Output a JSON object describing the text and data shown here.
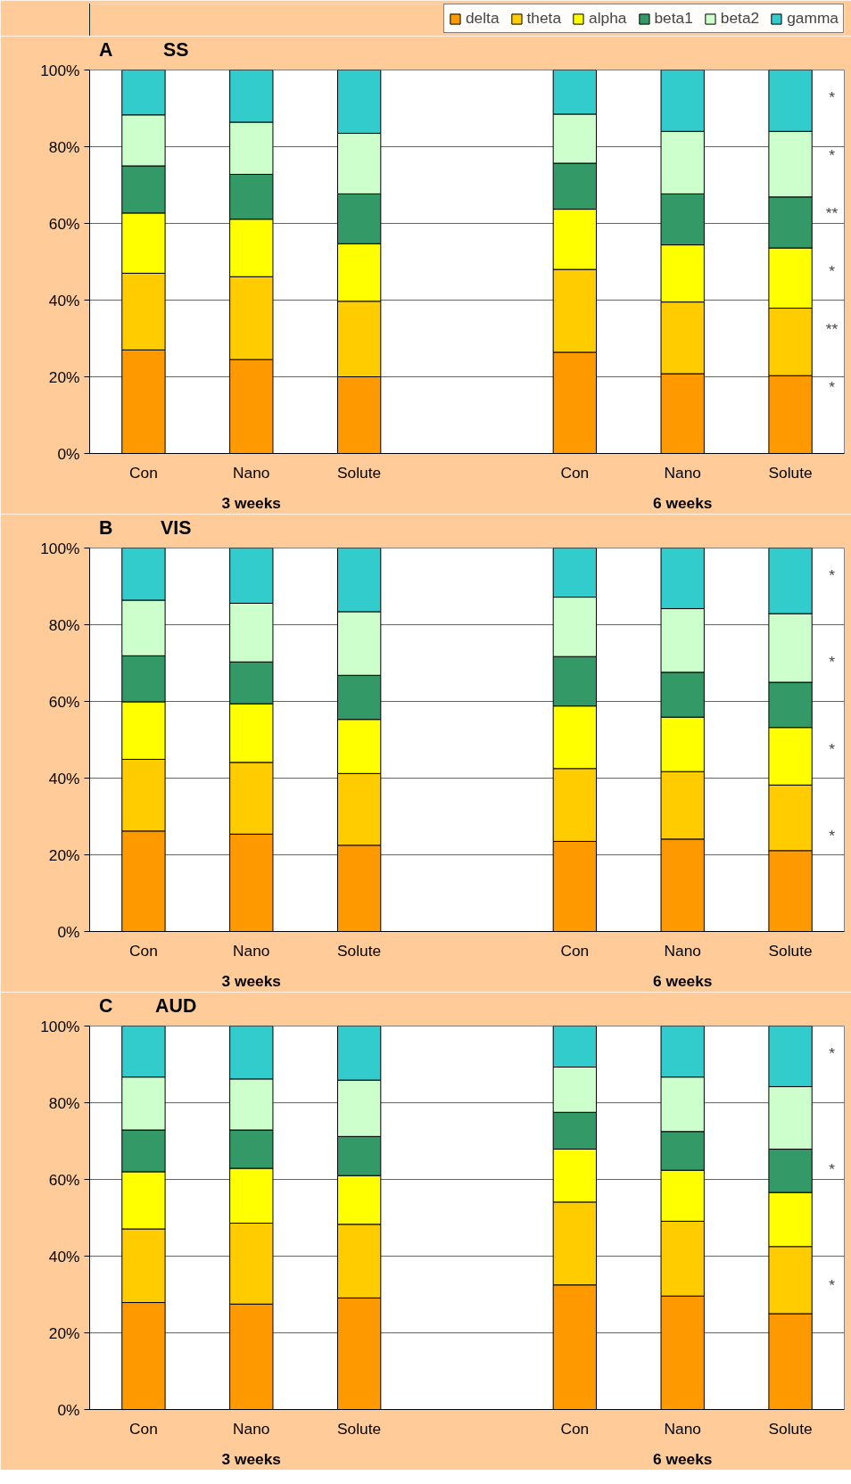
{
  "chart_data": [
    {
      "type": "bar",
      "stacked": true,
      "title": "A",
      "subtitle": "SS",
      "legend": "top right",
      "grid": "y",
      "categories": [
        "Con",
        "Nano",
        "Solute",
        null,
        "Con",
        "Nano",
        "Solute"
      ],
      "ylim": [
        0,
        100
      ],
      "yticks": [
        {
          "value": 0,
          "label": "0%"
        },
        {
          "value": 20,
          "label": "20%"
        },
        {
          "value": 40,
          "label": "40%"
        },
        {
          "value": 60,
          "label": "60%"
        },
        {
          "value": 80,
          "label": "80%"
        },
        {
          "value": 100,
          "label": "100%"
        }
      ],
      "series": [
        {
          "name": "delta",
          "color": "#ff9900",
          "values": [
            27,
            24.5,
            20,
            null,
            26.4,
            20.8,
            20.3
          ]
        },
        {
          "name": "theta",
          "color": "#ffcc00",
          "values": [
            20,
            21.6,
            19.7,
            null,
            21.6,
            18.7,
            17.6
          ]
        },
        {
          "name": "alpha",
          "color": "#ffff00",
          "values": [
            15.7,
            15,
            15,
            null,
            15.7,
            14.9,
            15.7
          ]
        },
        {
          "name": "beta1",
          "color": "#339966",
          "values": [
            12.3,
            11.7,
            13,
            null,
            12,
            13.3,
            13.3
          ]
        },
        {
          "name": "beta2",
          "color": "#ccffcc",
          "values": [
            13.3,
            13.6,
            15.8,
            null,
            12.8,
            16.3,
            17.1
          ]
        },
        {
          "name": "gamma",
          "color": "#33cccc",
          "values": [
            11.7,
            13.6,
            16.5,
            null,
            11.5,
            16,
            16
          ]
        }
      ],
      "annotations": [
        "3 weeks",
        "6 weeks",
        "*",
        "*",
        "**",
        "*",
        "**",
        "*"
      ]
    },
    {
      "type": "bar",
      "stacked": true,
      "title": "B",
      "subtitle": "VIS",
      "grid": "y",
      "categories": [
        "Con",
        "Nano",
        "Solute",
        null,
        "Con",
        "Nano",
        "Solute"
      ],
      "ylim": [
        0,
        100
      ],
      "yticks": [
        {
          "value": 0,
          "label": "0%"
        },
        {
          "value": 20,
          "label": "20%"
        },
        {
          "value": 40,
          "label": "40%"
        },
        {
          "value": 60,
          "label": "60%"
        },
        {
          "value": 80,
          "label": "80%"
        },
        {
          "value": 100,
          "label": "100%"
        }
      ],
      "series": [
        {
          "color": "#ff9900",
          "values": [
            26.2,
            25.4,
            22.5,
            null,
            23.5,
            24.1,
            21.1
          ]
        },
        {
          "color": "#ffcc00",
          "values": [
            18.7,
            18.7,
            18.7,
            null,
            19,
            17.6,
            17.1
          ]
        },
        {
          "color": "#ffff00",
          "values": [
            15,
            15.3,
            14.1,
            null,
            16.3,
            14.2,
            15
          ]
        },
        {
          "color": "#339966",
          "values": [
            12,
            10.9,
            11.5,
            null,
            12.9,
            11.7,
            11.8
          ]
        },
        {
          "color": "#ccffcc",
          "values": [
            14.5,
            15.3,
            16.6,
            null,
            15.5,
            16.6,
            17.9
          ]
        },
        {
          "color": "#33cccc",
          "values": [
            13.6,
            14.4,
            16.6,
            null,
            12.8,
            15.8,
            17.1
          ]
        }
      ],
      "annotations": [
        "3 weeks",
        "6 weeks",
        "*",
        "*",
        "*",
        "*"
      ]
    },
    {
      "type": "bar",
      "stacked": true,
      "title": "C",
      "subtitle": "AUD",
      "grid": "y",
      "categories": [
        "Con",
        "Nano",
        "Solute",
        null,
        "Con",
        "Nano",
        "Solute"
      ],
      "ylim": [
        0,
        100
      ],
      "yticks": [
        {
          "value": 0,
          "label": "0%"
        },
        {
          "value": 20,
          "label": "20%"
        },
        {
          "value": 40,
          "label": "40%"
        },
        {
          "value": 60,
          "label": "60%"
        },
        {
          "value": 80,
          "label": "80%"
        },
        {
          "value": 100,
          "label": "100%"
        }
      ],
      "series": [
        {
          "color": "#ff9900",
          "values": [
            27.9,
            27.5,
            29.1,
            null,
            32.5,
            29.6,
            25
          ]
        },
        {
          "color": "#ffcc00",
          "values": [
            19.2,
            21.1,
            19.2,
            null,
            21.6,
            19.5,
            17.5
          ]
        },
        {
          "color": "#ffff00",
          "values": [
            14.9,
            14.3,
            12.7,
            null,
            13.8,
            13.3,
            14.1
          ]
        },
        {
          "color": "#339966",
          "values": [
            10.9,
            10,
            10.2,
            null,
            9.6,
            10.1,
            11.3
          ]
        },
        {
          "color": "#ccffcc",
          "values": [
            13.8,
            13.3,
            14.7,
            null,
            11.8,
            14.2,
            16.3
          ]
        },
        {
          "color": "#33cccc",
          "values": [
            13.3,
            13.8,
            14.1,
            null,
            10.7,
            13.3,
            15.8
          ]
        }
      ],
      "annotations": [
        "3 weeks",
        "6 weeks",
        "*",
        "*",
        "*"
      ]
    }
  ]
}
